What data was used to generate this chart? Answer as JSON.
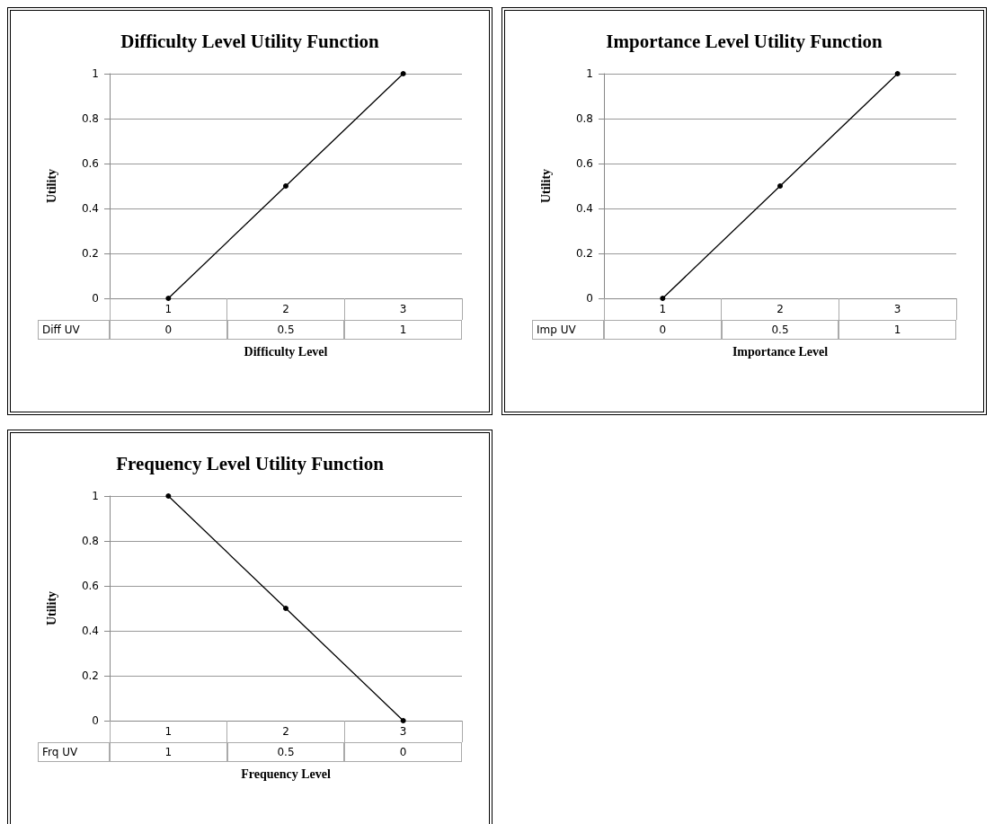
{
  "chart_data": [
    {
      "type": "line",
      "title": "Difficulty Level Utility Function",
      "xlabel": "Difficulty Level",
      "ylabel": "Utility",
      "categories": [
        "1",
        "2",
        "3"
      ],
      "series": [
        {
          "name": "Diff UV",
          "color": "#000000",
          "values": [
            0,
            0.5,
            1
          ]
        }
      ],
      "ylim": [
        0,
        1
      ],
      "yticks": [
        0,
        0.2,
        0.4,
        0.6,
        0.8,
        1
      ],
      "grid": "y",
      "marker": "circle",
      "data_labels": true
    },
    {
      "type": "line",
      "title": "Importance Level Utility Function",
      "xlabel": "Importance Level",
      "ylabel": "Utility",
      "categories": [
        "1",
        "2",
        "3"
      ],
      "series": [
        {
          "name": "Imp UV",
          "color": "#000000",
          "values": [
            0,
            0.5,
            1
          ]
        }
      ],
      "ylim": [
        0,
        1
      ],
      "yticks": [
        0,
        0.2,
        0.4,
        0.6,
        0.8,
        1
      ],
      "grid": "y",
      "marker": "circle",
      "data_labels": true
    },
    {
      "type": "line",
      "title": "Frequency Level Utility Function",
      "xlabel": "Frequency Level",
      "ylabel": "Utility",
      "categories": [
        "1",
        "2",
        "3"
      ],
      "series": [
        {
          "name": "Frq UV",
          "color": "#000000",
          "values": [
            1,
            0.5,
            0
          ]
        }
      ],
      "ylim": [
        0,
        1
      ],
      "yticks": [
        0,
        0.2,
        0.4,
        0.6,
        0.8,
        1
      ],
      "grid": "y",
      "marker": "circle",
      "data_labels": true
    }
  ]
}
